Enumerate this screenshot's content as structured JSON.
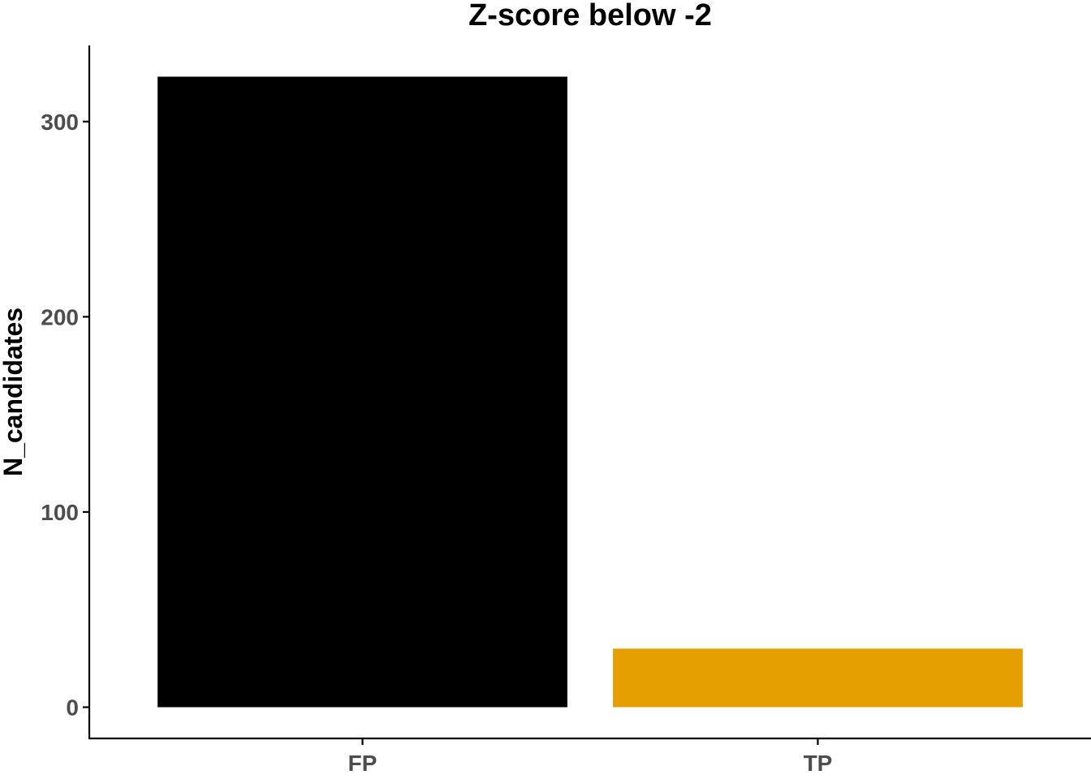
{
  "chart_data": {
    "type": "bar",
    "title": "Z-score below -2",
    "xlabel": "",
    "ylabel": "N_candidates",
    "categories": [
      "FP",
      "TP"
    ],
    "values": [
      323,
      30
    ],
    "colors": [
      "#000000",
      "#E69F00"
    ],
    "ylim": [
      -16,
      339
    ],
    "yticks": [
      0,
      100,
      200,
      300
    ],
    "ytick_labels": [
      "0",
      "100",
      "200",
      "300"
    ],
    "grid": false,
    "legend": "none"
  }
}
